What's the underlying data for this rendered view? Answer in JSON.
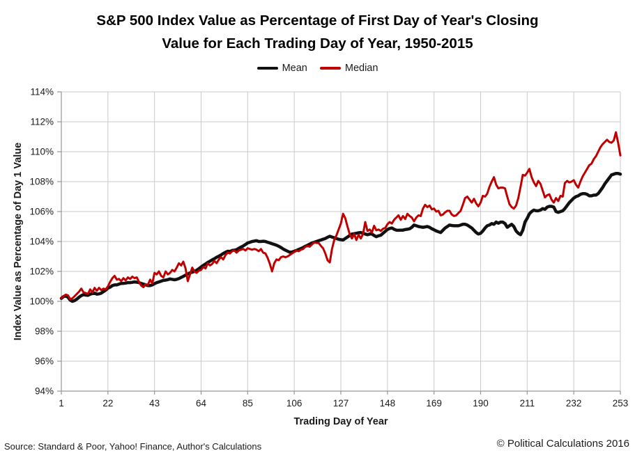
{
  "title": {
    "line1": "S&P 500 Index Value as Percentage of First Day of Year's Closing",
    "line2": "Value for Each Trading Day of Year, 1950-2015"
  },
  "legend": {
    "items": [
      {
        "label": "Mean",
        "color": "#111111"
      },
      {
        "label": "Median",
        "color": "#c00000"
      }
    ]
  },
  "footer": {
    "source": "Source: Standard & Poor, Yahoo! Finance, Author's Calculations",
    "copyright": "© Political Calculations 2016"
  },
  "chart_data": {
    "type": "line",
    "title": "S&P 500 Index Value as Percentage of First Day of Year's Closing Value for Each Trading Day of Year, 1950-2015",
    "xlabel": "Trading Day of Year",
    "ylabel": "Index Value as Percentage of Day 1 Value",
    "xlim": [
      1,
      253
    ],
    "ylim": [
      94,
      114
    ],
    "x_ticks": [
      1,
      22,
      43,
      64,
      85,
      106,
      127,
      148,
      169,
      190,
      211,
      232,
      253
    ],
    "y_ticks": [
      94,
      96,
      98,
      100,
      102,
      104,
      106,
      108,
      110,
      112,
      114
    ],
    "y_tick_suffix": "%",
    "grid": true,
    "legend_position": "top",
    "colors": {
      "grid": "#c9c9c9",
      "axis": "#969696",
      "tick_text": "#1a1a1a"
    },
    "series": [
      {
        "name": "Mean",
        "color": "#111111",
        "width": 4.5,
        "values": [
          100.2,
          100.32,
          100.35,
          100.28,
          100.08,
          100.0,
          100.05,
          100.15,
          100.28,
          100.38,
          100.45,
          100.42,
          100.4,
          100.48,
          100.52,
          100.55,
          100.48,
          100.5,
          100.55,
          100.65,
          100.75,
          100.88,
          100.95,
          101.05,
          101.1,
          101.1,
          101.15,
          101.2,
          101.2,
          101.22,
          101.25,
          101.25,
          101.27,
          101.3,
          101.28,
          101.25,
          101.2,
          101.15,
          101.1,
          101.05,
          101.05,
          101.1,
          101.18,
          101.25,
          101.3,
          101.35,
          101.4,
          101.42,
          101.45,
          101.5,
          101.47,
          101.44,
          101.47,
          101.52,
          101.6,
          101.67,
          101.75,
          101.83,
          101.9,
          101.95,
          102.0,
          102.08,
          102.18,
          102.3,
          102.4,
          102.5,
          102.6,
          102.68,
          102.77,
          102.85,
          102.95,
          103.02,
          103.1,
          103.2,
          103.28,
          103.35,
          103.33,
          103.4,
          103.42,
          103.45,
          103.55,
          103.63,
          103.7,
          103.8,
          103.9,
          103.95,
          104.0,
          104.03,
          104.05,
          104.0,
          104.0,
          104.02,
          104.0,
          103.95,
          103.9,
          103.85,
          103.8,
          103.75,
          103.68,
          103.6,
          103.5,
          103.42,
          103.35,
          103.28,
          103.3,
          103.35,
          103.4,
          103.47,
          103.53,
          103.6,
          103.68,
          103.75,
          103.83,
          103.9,
          103.95,
          104.0,
          104.05,
          104.1,
          104.15,
          104.2,
          104.28,
          104.35,
          104.3,
          104.25,
          104.2,
          104.15,
          104.12,
          104.1,
          104.2,
          104.3,
          104.4,
          104.5,
          104.52,
          104.55,
          104.58,
          104.6,
          104.55,
          104.5,
          104.45,
          104.5,
          104.5,
          104.4,
          104.32,
          104.38,
          104.42,
          104.55,
          104.68,
          104.8,
          104.87,
          104.9,
          104.82,
          104.76,
          104.75,
          104.76,
          104.76,
          104.8,
          104.82,
          104.85,
          104.95,
          105.1,
          105.05,
          105.0,
          104.97,
          104.95,
          104.97,
          105.0,
          104.95,
          104.85,
          104.78,
          104.7,
          104.65,
          104.6,
          104.75,
          104.9,
          105.0,
          105.1,
          105.07,
          105.05,
          105.05,
          105.05,
          105.1,
          105.15,
          105.15,
          105.1,
          105.0,
          104.9,
          104.75,
          104.6,
          104.5,
          104.55,
          104.7,
          104.9,
          105.05,
          105.1,
          105.2,
          105.15,
          105.3,
          105.22,
          105.3,
          105.3,
          105.2,
          104.95,
          105.05,
          105.15,
          105.0,
          104.7,
          104.55,
          104.45,
          104.75,
          105.3,
          105.55,
          105.85,
          106.0,
          106.1,
          106.05,
          106.05,
          106.1,
          106.2,
          106.15,
          106.3,
          106.35,
          106.35,
          106.3,
          106.0,
          105.95,
          106.0,
          106.05,
          106.2,
          106.4,
          106.6,
          106.75,
          106.9,
          107.0,
          107.05,
          107.15,
          107.2,
          107.2,
          107.15,
          107.05,
          107.05,
          107.1,
          107.1,
          107.2,
          107.4,
          107.6,
          107.85,
          108.05,
          108.25,
          108.45,
          108.5,
          108.55,
          108.55,
          108.5
        ]
      },
      {
        "name": "Median",
        "color": "#c00000",
        "width": 3,
        "values": [
          100.2,
          100.35,
          100.45,
          100.4,
          100.15,
          100.2,
          100.35,
          100.5,
          100.65,
          100.85,
          100.6,
          100.55,
          100.5,
          100.8,
          100.6,
          100.9,
          100.7,
          100.9,
          100.75,
          100.85,
          100.8,
          101.0,
          101.3,
          101.55,
          101.7,
          101.45,
          101.5,
          101.35,
          101.55,
          101.4,
          101.6,
          101.5,
          101.65,
          101.55,
          101.6,
          101.3,
          101.05,
          100.95,
          101.15,
          101.1,
          101.45,
          101.2,
          101.9,
          101.8,
          102.0,
          101.7,
          101.6,
          102.0,
          101.8,
          101.9,
          102.1,
          102.0,
          102.25,
          102.55,
          102.4,
          102.65,
          102.2,
          101.35,
          101.8,
          102.25,
          102.0,
          101.9,
          102.05,
          102.1,
          102.3,
          102.2,
          102.55,
          102.4,
          102.5,
          102.7,
          102.55,
          102.8,
          102.95,
          102.8,
          103.1,
          103.25,
          103.2,
          103.35,
          103.4,
          103.25,
          103.4,
          103.45,
          103.5,
          103.4,
          103.55,
          103.5,
          103.45,
          103.5,
          103.45,
          103.35,
          103.5,
          103.25,
          103.2,
          102.9,
          102.5,
          102.0,
          102.55,
          102.8,
          102.75,
          102.95,
          103.0,
          102.95,
          103.0,
          103.1,
          103.2,
          103.3,
          103.4,
          103.35,
          103.45,
          103.5,
          103.65,
          103.7,
          103.65,
          103.8,
          103.95,
          103.9,
          103.9,
          103.7,
          103.55,
          103.2,
          102.75,
          102.6,
          103.5,
          104.1,
          104.4,
          104.8,
          105.2,
          105.85,
          105.55,
          105.0,
          104.5,
          104.2,
          104.5,
          104.1,
          104.45,
          104.2,
          104.5,
          105.3,
          104.7,
          104.8,
          104.6,
          105.05,
          104.75,
          104.8,
          104.7,
          104.85,
          104.9,
          105.15,
          105.3,
          105.2,
          105.45,
          105.6,
          105.75,
          105.45,
          105.7,
          105.5,
          105.85,
          105.7,
          105.6,
          105.35,
          105.6,
          105.75,
          105.7,
          106.2,
          106.45,
          106.3,
          106.4,
          106.15,
          106.2,
          106.0,
          106.05,
          105.75,
          105.8,
          105.95,
          106.05,
          106.05,
          105.8,
          105.7,
          105.75,
          105.9,
          106.05,
          106.45,
          106.9,
          107.0,
          106.8,
          106.6,
          106.85,
          106.55,
          106.35,
          106.6,
          107.05,
          107.0,
          107.2,
          107.65,
          108.0,
          108.3,
          107.8,
          107.55,
          107.6,
          107.6,
          107.55,
          107.0,
          106.5,
          106.3,
          106.2,
          106.4,
          106.9,
          107.65,
          108.45,
          108.4,
          108.6,
          108.85,
          108.3,
          107.95,
          107.7,
          108.05,
          107.85,
          107.4,
          106.95,
          107.1,
          107.15,
          106.8,
          106.6,
          106.9,
          106.7,
          107.05,
          107.0,
          107.9,
          108.05,
          107.95,
          108.0,
          108.1,
          107.8,
          107.6,
          108.0,
          108.35,
          108.6,
          108.85,
          109.1,
          109.2,
          109.5,
          109.7,
          110.0,
          110.3,
          110.5,
          110.65,
          110.8,
          110.65,
          110.6,
          110.75,
          111.3,
          110.6,
          109.75
        ]
      }
    ]
  }
}
